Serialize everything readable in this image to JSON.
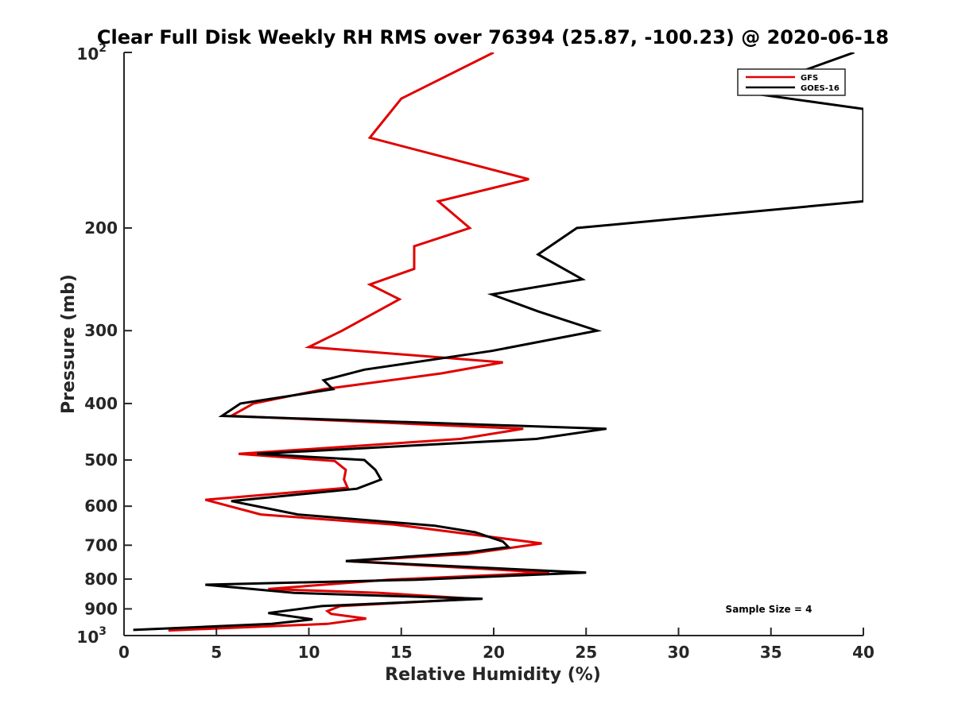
{
  "chart_data": {
    "type": "line",
    "title": "Clear Full Disk Weekly RH RMS over 76394 (25.87, -100.23) @ 2020-06-18",
    "xlabel": "Relative Humidity (%)",
    "ylabel": "Pressure (mb)",
    "xlim": [
      0,
      40
    ],
    "ylim": [
      100,
      1000
    ],
    "y_scale": "log",
    "y_reversed": true,
    "x_ticks": [
      {
        "value": 0,
        "label": "0"
      },
      {
        "value": 5,
        "label": "5"
      },
      {
        "value": 10,
        "label": "10"
      },
      {
        "value": 15,
        "label": "15"
      },
      {
        "value": 20,
        "label": "20"
      },
      {
        "value": 25,
        "label": "25"
      },
      {
        "value": 30,
        "label": "30"
      },
      {
        "value": 35,
        "label": "35"
      },
      {
        "value": 40,
        "label": "40"
      }
    ],
    "y_ticks": [
      {
        "value": 100,
        "label": "10",
        "sup": "2"
      },
      {
        "value": 200,
        "label": "200",
        "sup": ""
      },
      {
        "value": 300,
        "label": "300",
        "sup": ""
      },
      {
        "value": 400,
        "label": "400",
        "sup": ""
      },
      {
        "value": 500,
        "label": "500",
        "sup": ""
      },
      {
        "value": 600,
        "label": "600",
        "sup": ""
      },
      {
        "value": 700,
        "label": "700",
        "sup": ""
      },
      {
        "value": 800,
        "label": "800",
        "sup": ""
      },
      {
        "value": 900,
        "label": "900",
        "sup": ""
      },
      {
        "value": 1000,
        "label": "10",
        "sup": "3"
      }
    ],
    "grid": false,
    "legend_position": "top-right",
    "annotation": "Sample Size = 4",
    "series": [
      {
        "name": "GFS",
        "color": "#e00000",
        "points": [
          [
            20.0,
            100
          ],
          [
            15.0,
            120
          ],
          [
            13.3,
            140
          ],
          [
            21.9,
            165
          ],
          [
            17.0,
            180
          ],
          [
            18.7,
            200
          ],
          [
            15.7,
            215
          ],
          [
            15.7,
            235
          ],
          [
            13.3,
            250
          ],
          [
            14.9,
            265
          ],
          [
            11.8,
            300
          ],
          [
            10.0,
            320
          ],
          [
            20.5,
            340
          ],
          [
            17.2,
            355
          ],
          [
            10.8,
            378
          ],
          [
            7.0,
            400
          ],
          [
            5.8,
            420
          ],
          [
            21.6,
            442
          ],
          [
            18.2,
            460
          ],
          [
            6.2,
            488
          ],
          [
            11.4,
            502
          ],
          [
            12.0,
            520
          ],
          [
            11.9,
            540
          ],
          [
            12.1,
            558
          ],
          [
            4.4,
            585
          ],
          [
            7.4,
            620
          ],
          [
            14.6,
            645
          ],
          [
            22.6,
            695
          ],
          [
            18.5,
            725
          ],
          [
            12.0,
            745
          ],
          [
            23.0,
            780
          ],
          [
            14.3,
            802
          ],
          [
            7.8,
            832
          ],
          [
            13.8,
            845
          ],
          [
            19.0,
            865
          ],
          [
            11.7,
            890
          ],
          [
            11.0,
            908
          ],
          [
            11.2,
            918
          ],
          [
            13.1,
            935
          ],
          [
            11.0,
            955
          ],
          [
            2.4,
            980
          ]
        ]
      },
      {
        "name": "GOES-16",
        "color": "#000000",
        "points": [
          [
            39.5,
            100
          ],
          [
            33.5,
            117
          ],
          [
            40.0,
            125
          ],
          [
            40.0,
            180
          ],
          [
            24.5,
            200
          ],
          [
            22.4,
            222
          ],
          [
            24.8,
            245
          ],
          [
            19.9,
            260
          ],
          [
            22.4,
            278
          ],
          [
            25.6,
            300
          ],
          [
            19.9,
            325
          ],
          [
            13.0,
            350
          ],
          [
            10.8,
            365
          ],
          [
            11.3,
            378
          ],
          [
            6.3,
            400
          ],
          [
            5.3,
            420
          ],
          [
            26.1,
            442
          ],
          [
            22.3,
            460
          ],
          [
            7.2,
            488
          ],
          [
            13.0,
            500
          ],
          [
            13.6,
            520
          ],
          [
            13.9,
            540
          ],
          [
            12.6,
            560
          ],
          [
            5.8,
            588
          ],
          [
            9.4,
            620
          ],
          [
            16.8,
            648
          ],
          [
            19.0,
            665
          ],
          [
            20.5,
            690
          ],
          [
            20.8,
            705
          ],
          [
            18.6,
            720
          ],
          [
            12.0,
            745
          ],
          [
            25.0,
            780
          ],
          [
            15.8,
            802
          ],
          [
            4.4,
            818
          ],
          [
            9.2,
            845
          ],
          [
            19.4,
            865
          ],
          [
            10.7,
            890
          ],
          [
            7.8,
            915
          ],
          [
            10.2,
            938
          ],
          [
            8.0,
            955
          ],
          [
            0.5,
            978
          ]
        ]
      }
    ]
  }
}
